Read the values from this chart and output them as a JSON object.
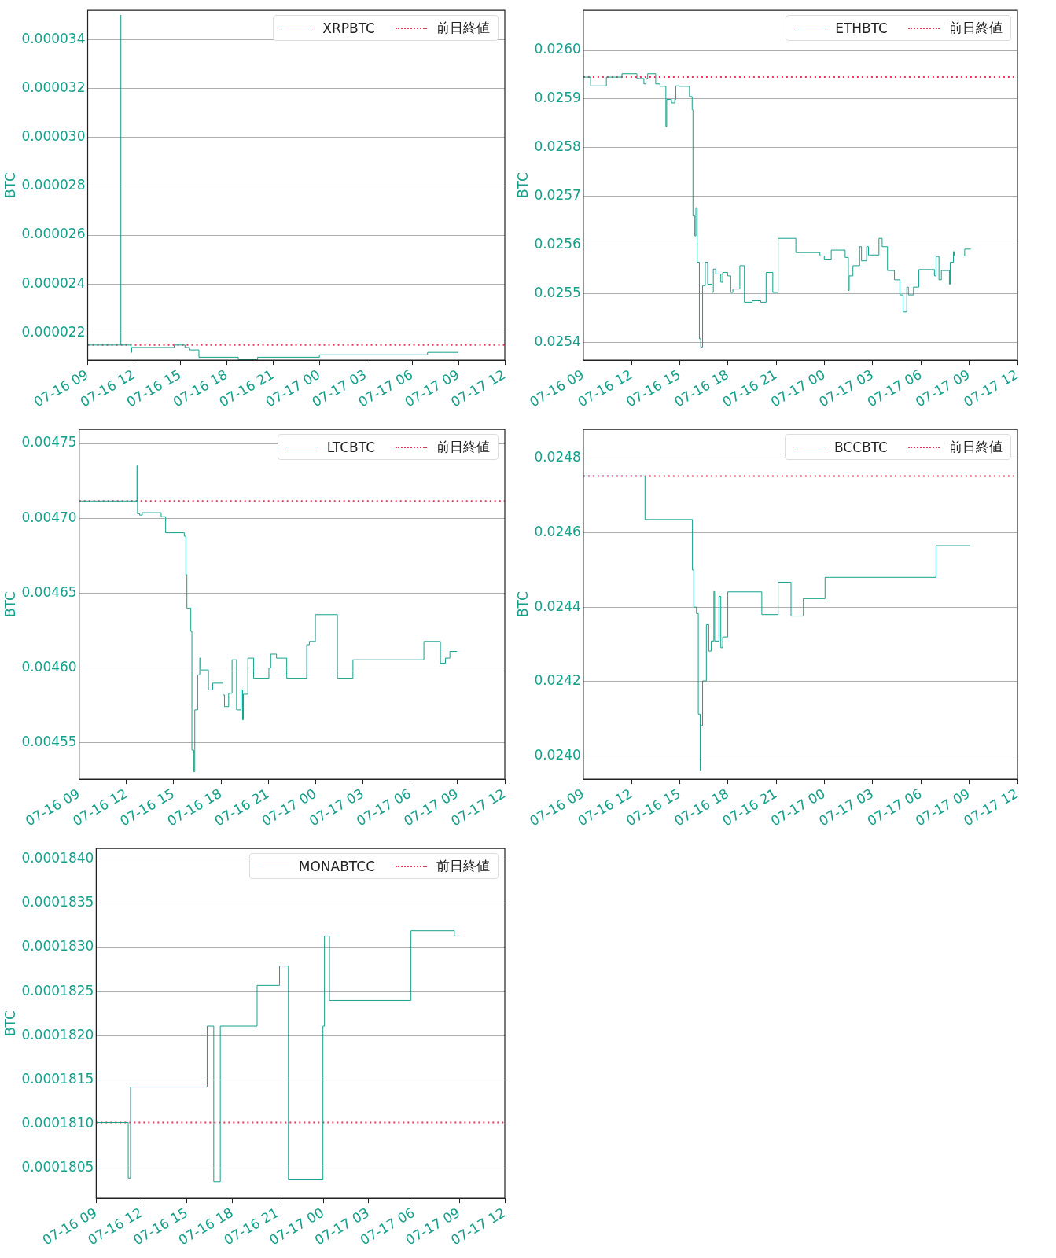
{
  "chart_data": [
    {
      "type": "step",
      "ylabel": "BTC",
      "xlim": [
        "--07-16T09:00",
        "--07-17T12:00"
      ],
      "xticks": [
        {
          "value": "--07-16T09:00",
          "label": "07-16 09"
        },
        {
          "value": "--07-16T12:00",
          "label": "07-16 12"
        },
        {
          "value": "--07-16T15:00",
          "label": "07-16 15"
        },
        {
          "value": "--07-16T18:00",
          "label": "07-16 18"
        },
        {
          "value": "--07-16T21:00",
          "label": "07-16 21"
        },
        {
          "value": "--07-17T00:00",
          "label": "07-17 00"
        },
        {
          "value": "--07-17T03:00",
          "label": "07-17 03"
        },
        {
          "value": "--07-17T06:00",
          "label": "07-17 06"
        },
        {
          "value": "--07-17T09:00",
          "label": "07-17 09"
        },
        {
          "value": "--07-17T12:00",
          "label": "07-17 12"
        }
      ],
      "ylim": [
        2.088e-05,
        3.52e-05
      ],
      "yticks": [
        {
          "value": 2.2e-05,
          "label": "0.000022"
        },
        {
          "value": 2.4e-05,
          "label": "0.000024"
        },
        {
          "value": 2.6e-05,
          "label": "0.000026"
        },
        {
          "value": 2.8e-05,
          "label": "0.000028"
        },
        {
          "value": 3e-05,
          "label": "0.000030"
        },
        {
          "value": 3.2e-05,
          "label": "0.000032"
        },
        {
          "value": 3.4e-05,
          "label": "0.000034"
        }
      ],
      "grid": "y",
      "legend": "top right",
      "x": [
        "--07-16T09:00",
        "--07-16T11:03",
        "--07-16T11:06",
        "--07-16T11:09",
        "--07-16T11:48",
        "--07-16T11:51",
        "--07-16T14:24",
        "--07-16T14:36",
        "--07-16T15:18",
        "--07-16T15:36",
        "--07-16T16:12",
        "--07-16T18:45",
        "--07-16T20:00",
        "--07-17T00:00",
        "--07-17T07:00",
        "--07-17T08:00",
        "--07-17T09:00"
      ],
      "series": [
        {
          "name": "XRPBTC",
          "color": "#16a08c",
          "values": [
            2.15e-05,
            2.15e-05,
            3.5e-05,
            2.15e-05,
            2.12e-05,
            2.14e-05,
            2.14e-05,
            2.15e-05,
            2.14e-05,
            2.13e-05,
            2.1e-05,
            2.09e-05,
            2.1e-05,
            2.11e-05,
            2.12e-05,
            2.12e-05,
            2.12e-05
          ]
        }
      ],
      "ref_lines": [
        {
          "axis": "y",
          "value": 2.15e-05,
          "label": "前日終値",
          "color": "#e5375d",
          "line_style": "dotted"
        }
      ]
    },
    {
      "type": "step",
      "ylabel": "BTC",
      "xlim": [
        "--07-16T09:00",
        "--07-17T12:00"
      ],
      "xticks": [
        {
          "value": "--07-16T09:00",
          "label": "07-16 09"
        },
        {
          "value": "--07-16T12:00",
          "label": "07-16 12"
        },
        {
          "value": "--07-16T15:00",
          "label": "07-16 15"
        },
        {
          "value": "--07-16T18:00",
          "label": "07-16 18"
        },
        {
          "value": "--07-16T21:00",
          "label": "07-16 21"
        },
        {
          "value": "--07-17T00:00",
          "label": "07-17 00"
        },
        {
          "value": "--07-17T03:00",
          "label": "07-17 03"
        },
        {
          "value": "--07-17T06:00",
          "label": "07-17 06"
        },
        {
          "value": "--07-17T09:00",
          "label": "07-17 09"
        },
        {
          "value": "--07-17T12:00",
          "label": "07-17 12"
        }
      ],
      "ylim": [
        0.025364,
        0.026082
      ],
      "yticks": [
        {
          "value": 0.0254,
          "label": "0.0254"
        },
        {
          "value": 0.0255,
          "label": "0.0255"
        },
        {
          "value": 0.0256,
          "label": "0.0256"
        },
        {
          "value": 0.0257,
          "label": "0.0257"
        },
        {
          "value": 0.0258,
          "label": "0.0258"
        },
        {
          "value": 0.0259,
          "label": "0.0259"
        },
        {
          "value": 0.026,
          "label": "0.0260"
        }
      ],
      "grid": "y",
      "legend": "top right",
      "x": [
        "--07-16T09:00",
        "--07-16T09:27",
        "--07-16T10:26",
        "--07-16T11:24",
        "--07-16T12:20",
        "--07-16T12:46",
        "--07-16T12:54",
        "--07-16T13:00",
        "--07-16T13:30",
        "--07-16T13:46",
        "--07-16T14:08",
        "--07-16T14:11",
        "--07-16T14:29",
        "--07-16T14:41",
        "--07-16T14:45",
        "--07-16T14:58",
        "--07-16T15:36",
        "--07-16T15:46",
        "--07-16T15:49",
        "--07-16T15:56",
        "--07-16T16:00",
        "--07-16T16:05",
        "--07-16T16:13",
        "--07-16T16:18",
        "--07-16T16:25",
        "--07-16T16:35",
        "--07-16T16:44",
        "--07-16T17:00",
        "--07-16T17:05",
        "--07-16T17:14",
        "--07-16T17:33",
        "--07-16T17:40",
        "--07-16T17:59",
        "--07-16T18:10",
        "--07-16T18:18",
        "--07-16T18:44",
        "--07-16T19:01",
        "--07-16T19:30",
        "--07-16T20:02",
        "--07-16T20:22",
        "--07-16T20:47",
        "--07-16T21:07",
        "--07-16T22:13",
        "--07-16T23:43",
        "--07-16T23:59",
        "--07-17T00:25",
        "--07-17T01:17",
        "--07-17T01:29",
        "--07-17T01:32",
        "--07-17T01:46",
        "--07-17T02:11",
        "--07-17T02:18",
        "--07-17T02:37",
        "--07-17T02:44",
        "--07-17T03:23",
        "--07-17T03:35",
        "--07-17T03:55",
        "--07-17T04:21",
        "--07-17T04:41",
        "--07-17T04:53",
        "--07-17T05:07",
        "--07-17T05:13",
        "--07-17T05:32",
        "--07-17T05:52",
        "--07-17T06:50",
        "--07-17T06:56",
        "--07-17T07:07",
        "--07-17T07:16",
        "--07-17T07:46",
        "--07-17T07:49",
        "--07-17T08:01",
        "--07-17T08:04",
        "--07-17T08:43",
        "--07-17T09:06"
      ],
      "series": [
        {
          "name": "ETHBTC",
          "color": "#16a08c",
          "values": [
            0.025945,
            0.025927,
            0.025945,
            0.025952,
            0.025942,
            0.025931,
            0.025942,
            0.025952,
            0.025931,
            0.025926,
            0.025843,
            0.025899,
            0.025892,
            0.025899,
            0.025927,
            0.025926,
            0.025905,
            0.025878,
            0.02566,
            0.025619,
            0.025677,
            0.025565,
            0.025408,
            0.025391,
            0.025517,
            0.025565,
            0.02552,
            0.025503,
            0.025551,
            0.025541,
            0.025524,
            0.025544,
            0.025537,
            0.025503,
            0.02551,
            0.025558,
            0.025483,
            0.025486,
            0.025483,
            0.025544,
            0.025503,
            0.025614,
            0.025585,
            0.025578,
            0.02557,
            0.02559,
            0.025575,
            0.025507,
            0.025537,
            0.025558,
            0.025597,
            0.025568,
            0.025597,
            0.02558,
            0.025614,
            0.025597,
            0.025548,
            0.025529,
            0.025498,
            0.025463,
            0.025514,
            0.025498,
            0.025514,
            0.02555,
            0.025537,
            0.025577,
            0.025529,
            0.025548,
            0.02552,
            0.025565,
            0.025587,
            0.025578,
            0.025592,
            0.025592
          ]
        }
      ],
      "ref_lines": [
        {
          "axis": "y",
          "value": 0.025945,
          "label": "前日終値",
          "color": "#e5375d",
          "line_style": "dotted"
        }
      ]
    },
    {
      "type": "step",
      "ylabel": "BTC",
      "xlim": [
        "--07-16T09:00",
        "--07-17T12:00"
      ],
      "xticks": [
        {
          "value": "--07-16T09:00",
          "label": "07-16 09"
        },
        {
          "value": "--07-16T12:00",
          "label": "07-16 12"
        },
        {
          "value": "--07-16T15:00",
          "label": "07-16 15"
        },
        {
          "value": "--07-16T18:00",
          "label": "07-16 18"
        },
        {
          "value": "--07-16T21:00",
          "label": "07-16 21"
        },
        {
          "value": "--07-17T00:00",
          "label": "07-17 00"
        },
        {
          "value": "--07-17T03:00",
          "label": "07-17 03"
        },
        {
          "value": "--07-17T06:00",
          "label": "07-17 06"
        },
        {
          "value": "--07-17T09:00",
          "label": "07-17 09"
        },
        {
          "value": "--07-17T12:00",
          "label": "07-17 12"
        }
      ],
      "ylim": [
        0.0045254,
        0.0047594
      ],
      "yticks": [
        {
          "value": 0.00455,
          "label": "0.00455"
        },
        {
          "value": 0.0046,
          "label": "0.00460"
        },
        {
          "value": 0.00465,
          "label": "0.00465"
        },
        {
          "value": 0.0047,
          "label": "0.00470"
        },
        {
          "value": 0.00475,
          "label": "0.00475"
        }
      ],
      "grid": "y",
      "legend": "top right",
      "x": [
        "--07-16T09:00",
        "--07-16T12:40",
        "--07-16T12:42",
        "--07-16T12:50",
        "--07-16T13:00",
        "--07-16T14:12",
        "--07-16T14:29",
        "--07-16T15:40",
        "--07-16T15:46",
        "--07-16T15:50",
        "--07-16T16:05",
        "--07-16T16:09",
        "--07-16T16:16",
        "--07-16T16:20",
        "--07-16T16:31",
        "--07-16T16:39",
        "--07-16T16:42",
        "--07-16T17:12",
        "--07-16T17:28",
        "--07-16T18:07",
        "--07-16T18:13",
        "--07-16T18:29",
        "--07-16T18:42",
        "--07-16T18:59",
        "--07-16T19:16",
        "--07-16T19:22",
        "--07-16T19:25",
        "--07-16T19:42",
        "--07-16T20:04",
        "--07-16T21:02",
        "--07-16T21:09",
        "--07-16T21:31",
        "--07-16T22:10",
        "--07-16T23:26",
        "--07-16T23:36",
        "--07-16T23:59",
        "--07-17T01:23",
        "--07-17T02:22",
        "--07-17T06:52",
        "--07-17T07:55",
        "--07-17T08:14",
        "--07-17T08:31",
        "--07-17T08:58"
      ],
      "series": [
        {
          "name": "LTCBTC",
          "color": "#16a08c",
          "values": [
            0.0047115,
            0.004735,
            0.004703,
            0.0047021,
            0.0047037,
            0.004701,
            0.0046903,
            0.004688,
            0.0046623,
            0.0046399,
            0.0046243,
            0.0045449,
            0.0045304,
            0.0045718,
            0.0045952,
            0.0046064,
            0.0045985,
            0.0045852,
            0.0045897,
            0.0045818,
            0.004574,
            0.0045829,
            0.0046053,
            0.0045718,
            0.0045852,
            0.0045651,
            0.0045823,
            0.0046064,
            0.004593,
            0.0045997,
            0.0046091,
            0.0046064,
            0.004593,
            0.0046154,
            0.0046176,
            0.0046355,
            0.004593,
            0.0046053,
            0.0046176,
            0.004603,
            0.0046064,
            0.0046109,
            0.0046109
          ]
        }
      ],
      "ref_lines": [
        {
          "axis": "y",
          "value": 0.0047115,
          "label": "前日終値",
          "color": "#e5375d",
          "line_style": "dotted"
        }
      ]
    },
    {
      "type": "step",
      "ylabel": "BTC",
      "xlim": [
        "--07-16T09:00",
        "--07-17T12:00"
      ],
      "xticks": [
        {
          "value": "--07-16T09:00",
          "label": "07-16 09"
        },
        {
          "value": "--07-16T12:00",
          "label": "07-16 12"
        },
        {
          "value": "--07-16T15:00",
          "label": "07-16 15"
        },
        {
          "value": "--07-16T18:00",
          "label": "07-16 18"
        },
        {
          "value": "--07-16T21:00",
          "label": "07-16 21"
        },
        {
          "value": "--07-17T00:00",
          "label": "07-17 00"
        },
        {
          "value": "--07-17T03:00",
          "label": "07-17 03"
        },
        {
          "value": "--07-17T06:00",
          "label": "07-17 06"
        },
        {
          "value": "--07-17T09:00",
          "label": "07-17 09"
        },
        {
          "value": "--07-17T12:00",
          "label": "07-17 12"
        }
      ],
      "ylim": [
        0.023938,
        0.024877
      ],
      "yticks": [
        {
          "value": 0.024,
          "label": "0.0240"
        },
        {
          "value": 0.0242,
          "label": "0.0242"
        },
        {
          "value": 0.0244,
          "label": "0.0244"
        },
        {
          "value": 0.0246,
          "label": "0.0246"
        },
        {
          "value": 0.0248,
          "label": "0.0248"
        }
      ],
      "grid": "y",
      "legend": "top right",
      "x": [
        "--07-16T09:00",
        "--07-16T12:50",
        "--07-16T15:47",
        "--07-16T15:52",
        "--07-16T16:02",
        "--07-16T16:09",
        "--07-16T16:16",
        "--07-16T16:19",
        "--07-16T16:25",
        "--07-16T16:39",
        "--07-16T16:48",
        "--07-16T16:57",
        "--07-16T17:07",
        "--07-16T17:10",
        "--07-16T17:26",
        "--07-16T17:33",
        "--07-16T17:40",
        "--07-16T17:59",
        "--07-16T20:06",
        "--07-16T21:07",
        "--07-16T21:55",
        "--07-16T22:41",
        "--07-17T00:02",
        "--07-17T06:56",
        "--07-17T09:04"
      ],
      "series": [
        {
          "name": "BCCBTC",
          "color": "#16a08c",
          "values": [
            0.024752,
            0.024635,
            0.0245,
            0.0244,
            0.024383,
            0.024113,
            0.023962,
            0.024082,
            0.024202,
            0.024353,
            0.024282,
            0.024309,
            0.024442,
            0.024309,
            0.024429,
            0.024291,
            0.02432,
            0.024441,
            0.02438,
            0.024467,
            0.024376,
            0.024423,
            0.02448,
            0.024565,
            0.024565
          ]
        }
      ],
      "ref_lines": [
        {
          "axis": "y",
          "value": 0.024752,
          "label": "前日終値",
          "color": "#e5375d",
          "line_style": "dotted"
        }
      ]
    },
    {
      "type": "step",
      "ylabel": "BTC",
      "xlim": [
        "--07-16T09:00",
        "--07-17T12:00"
      ],
      "xticks": [
        {
          "value": "--07-16T09:00",
          "label": "07-16 09"
        },
        {
          "value": "--07-16T12:00",
          "label": "07-16 12"
        },
        {
          "value": "--07-16T15:00",
          "label": "07-16 15"
        },
        {
          "value": "--07-16T18:00",
          "label": "07-16 18"
        },
        {
          "value": "--07-16T21:00",
          "label": "07-16 21"
        },
        {
          "value": "--07-17T00:00",
          "label": "07-17 00"
        },
        {
          "value": "--07-17T03:00",
          "label": "07-17 03"
        },
        {
          "value": "--07-17T06:00",
          "label": "07-17 06"
        },
        {
          "value": "--07-17T09:00",
          "label": "07-17 09"
        },
        {
          "value": "--07-17T12:00",
          "label": "07-17 12"
        }
      ],
      "ylim": [
        0.00018016,
        0.00018412
      ],
      "yticks": [
        {
          "value": 0.0001805,
          "label": "0.0001805"
        },
        {
          "value": 0.000181,
          "label": "0.0001810"
        },
        {
          "value": 0.0001815,
          "label": "0.0001815"
        },
        {
          "value": 0.000182,
          "label": "0.0001820"
        },
        {
          "value": 0.0001825,
          "label": "0.0001825"
        },
        {
          "value": 0.000183,
          "label": "0.0001830"
        },
        {
          "value": 0.0001835,
          "label": "0.0001835"
        },
        {
          "value": 0.000184,
          "label": "0.0001840"
        }
      ],
      "grid": "y",
      "legend": "top right",
      "x": [
        "--07-16T09:00",
        "--07-16T11:07",
        "--07-16T11:16",
        "--07-16T16:20",
        "--07-16T16:46",
        "--07-16T17:12",
        "--07-16T19:38",
        "--07-16T21:07",
        "--07-16T21:42",
        "--07-16T23:59",
        "--07-17T00:05",
        "--07-17T00:25",
        "--07-17T05:48",
        "--07-17T08:40",
        "--07-17T09:00"
      ],
      "series": [
        {
          "name": "MONABTCC",
          "color": "#16a08c",
          "values": [
            0.00018102,
            0.00018039,
            0.00018142,
            0.00018211,
            0.00018035,
            0.00018211,
            0.00018257,
            0.00018279,
            0.00018037,
            0.00018211,
            0.00018313,
            0.0001824,
            0.00018319,
            0.00018313,
            0.00018313
          ]
        }
      ],
      "ref_lines": [
        {
          "axis": "y",
          "value": 0.00018102,
          "label": "前日終値",
          "color": "#e5375d",
          "line_style": "dotted"
        }
      ]
    }
  ]
}
